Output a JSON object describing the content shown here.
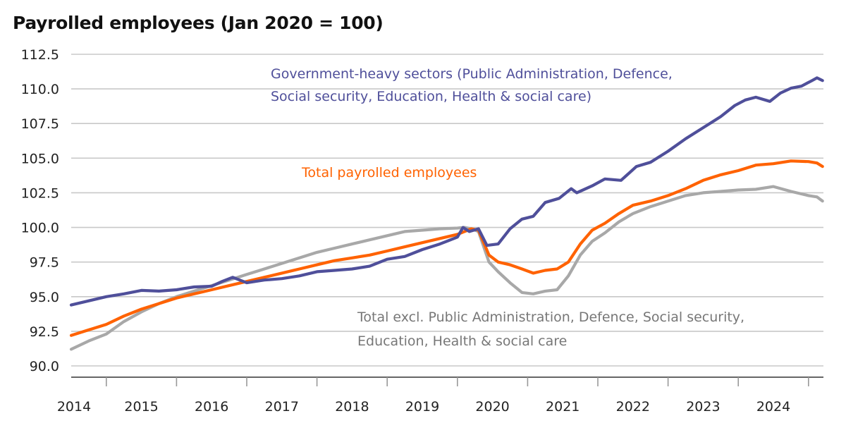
{
  "chart_data": {
    "type": "line",
    "title": "Payrolled employees (Jan 2020 = 100)",
    "xlabel": "",
    "ylabel": "",
    "ylim": [
      90.0,
      112.5
    ],
    "yticks": [
      "112.5",
      "110.0",
      "107.5",
      "105.0",
      "102.5",
      "100.0",
      "97.5",
      "95.0",
      "92.5",
      "90.0"
    ],
    "xlim": [
      2014.5,
      2025.2
    ],
    "xticks": [
      "2014",
      "2015",
      "2016",
      "2017",
      "2018",
      "2019",
      "2020",
      "2021",
      "2022",
      "2023",
      "2024"
    ],
    "grid": true,
    "legend": "inline-annotations",
    "series": [
      {
        "name": "Government-heavy sectors (Public Administration, Defence, Social security, Education, Health & social care)",
        "color": "#4f4f9a",
        "label_lines": [
          "Government-heavy sectors (Public Administration, Defence,",
          "Social security, Education, Health & social care)"
        ],
        "x": [
          2014.5,
          2014.75,
          2015.0,
          2015.25,
          2015.5,
          2015.75,
          2016.0,
          2016.25,
          2016.5,
          2016.65,
          2016.8,
          2017.0,
          2017.25,
          2017.5,
          2017.75,
          2018.0,
          2018.25,
          2018.5,
          2018.75,
          2019.0,
          2019.25,
          2019.5,
          2019.75,
          2020.0,
          2020.08,
          2020.17,
          2020.3,
          2020.42,
          2020.58,
          2020.75,
          2020.92,
          2021.08,
          2021.25,
          2021.45,
          2021.62,
          2021.7,
          2021.92,
          2022.1,
          2022.33,
          2022.55,
          2022.75,
          2023.0,
          2023.25,
          2023.5,
          2023.75,
          2023.95,
          2024.1,
          2024.25,
          2024.45,
          2024.6,
          2024.75,
          2024.9,
          2025.05,
          2025.12,
          2025.2
        ],
        "y": [
          94.4,
          94.7,
          95.0,
          95.2,
          95.45,
          95.4,
          95.5,
          95.7,
          95.75,
          96.1,
          96.4,
          96.0,
          96.2,
          96.3,
          96.5,
          96.8,
          96.9,
          97.0,
          97.2,
          97.7,
          97.9,
          98.4,
          98.8,
          99.3,
          100.0,
          99.7,
          99.9,
          98.7,
          98.8,
          99.9,
          100.6,
          100.8,
          101.8,
          102.1,
          102.8,
          102.5,
          103.0,
          103.5,
          103.4,
          104.4,
          104.7,
          105.5,
          106.4,
          107.2,
          108.0,
          108.8,
          109.2,
          109.4,
          109.1,
          109.7,
          110.05,
          110.2,
          110.6,
          110.8,
          110.6
        ]
      },
      {
        "name": "Total payrolled employees",
        "color": "#ff6200",
        "label_lines": [
          "Total payrolled employees"
        ],
        "x": [
          2014.5,
          2014.75,
          2015.0,
          2015.25,
          2015.5,
          2015.75,
          2016.0,
          2016.25,
          2016.5,
          2016.75,
          2017.0,
          2017.25,
          2017.5,
          2017.75,
          2018.0,
          2018.25,
          2018.5,
          2018.75,
          2019.0,
          2019.25,
          2019.5,
          2019.75,
          2020.0,
          2020.1,
          2020.2,
          2020.3,
          2020.45,
          2020.58,
          2020.75,
          2020.92,
          2021.08,
          2021.25,
          2021.42,
          2021.58,
          2021.75,
          2021.92,
          2022.1,
          2022.3,
          2022.5,
          2022.75,
          2023.0,
          2023.25,
          2023.5,
          2023.75,
          2024.0,
          2024.25,
          2024.5,
          2024.75,
          2025.0,
          2025.12,
          2025.2
        ],
        "y": [
          92.2,
          92.6,
          93.0,
          93.6,
          94.1,
          94.5,
          94.9,
          95.2,
          95.5,
          95.8,
          96.1,
          96.4,
          96.7,
          97.0,
          97.3,
          97.6,
          97.8,
          98.0,
          98.3,
          98.6,
          98.9,
          99.2,
          99.5,
          99.7,
          99.9,
          99.8,
          98.0,
          97.5,
          97.3,
          97.0,
          96.7,
          96.9,
          97.0,
          97.5,
          98.8,
          99.8,
          100.3,
          101.0,
          101.6,
          101.9,
          102.3,
          102.8,
          103.4,
          103.8,
          104.1,
          104.5,
          104.6,
          104.8,
          104.75,
          104.65,
          104.4
        ]
      },
      {
        "name": "Total excl. Public Administration, Defence, Social security, Education, Health & social care",
        "color": "#a8a8a8",
        "label_lines": [
          "Total excl. Public Administration, Defence, Social security,",
          "Education, Health & social care"
        ],
        "x": [
          2014.5,
          2014.75,
          2015.0,
          2015.25,
          2015.5,
          2015.75,
          2016.0,
          2016.25,
          2016.5,
          2016.75,
          2017.0,
          2017.25,
          2017.5,
          2017.75,
          2018.0,
          2018.25,
          2018.5,
          2018.75,
          2019.0,
          2019.25,
          2019.5,
          2019.75,
          2020.0,
          2020.1,
          2020.2,
          2020.3,
          2020.45,
          2020.58,
          2020.75,
          2020.92,
          2021.08,
          2021.25,
          2021.42,
          2021.58,
          2021.75,
          2021.92,
          2022.1,
          2022.3,
          2022.5,
          2022.75,
          2023.0,
          2023.25,
          2023.5,
          2023.75,
          2024.0,
          2024.25,
          2024.5,
          2024.75,
          2025.0,
          2025.12,
          2025.2
        ],
        "y": [
          91.2,
          91.8,
          92.3,
          93.2,
          93.9,
          94.5,
          95.0,
          95.4,
          95.8,
          96.2,
          96.6,
          97.0,
          97.4,
          97.8,
          98.2,
          98.5,
          98.8,
          99.1,
          99.4,
          99.7,
          99.8,
          99.9,
          99.95,
          100.0,
          99.9,
          99.7,
          97.5,
          96.8,
          96.0,
          95.3,
          95.2,
          95.4,
          95.5,
          96.5,
          98.0,
          99.0,
          99.6,
          100.4,
          101.0,
          101.5,
          101.9,
          102.3,
          102.5,
          102.6,
          102.7,
          102.75,
          102.95,
          102.6,
          102.3,
          102.2,
          101.9
        ]
      }
    ]
  }
}
